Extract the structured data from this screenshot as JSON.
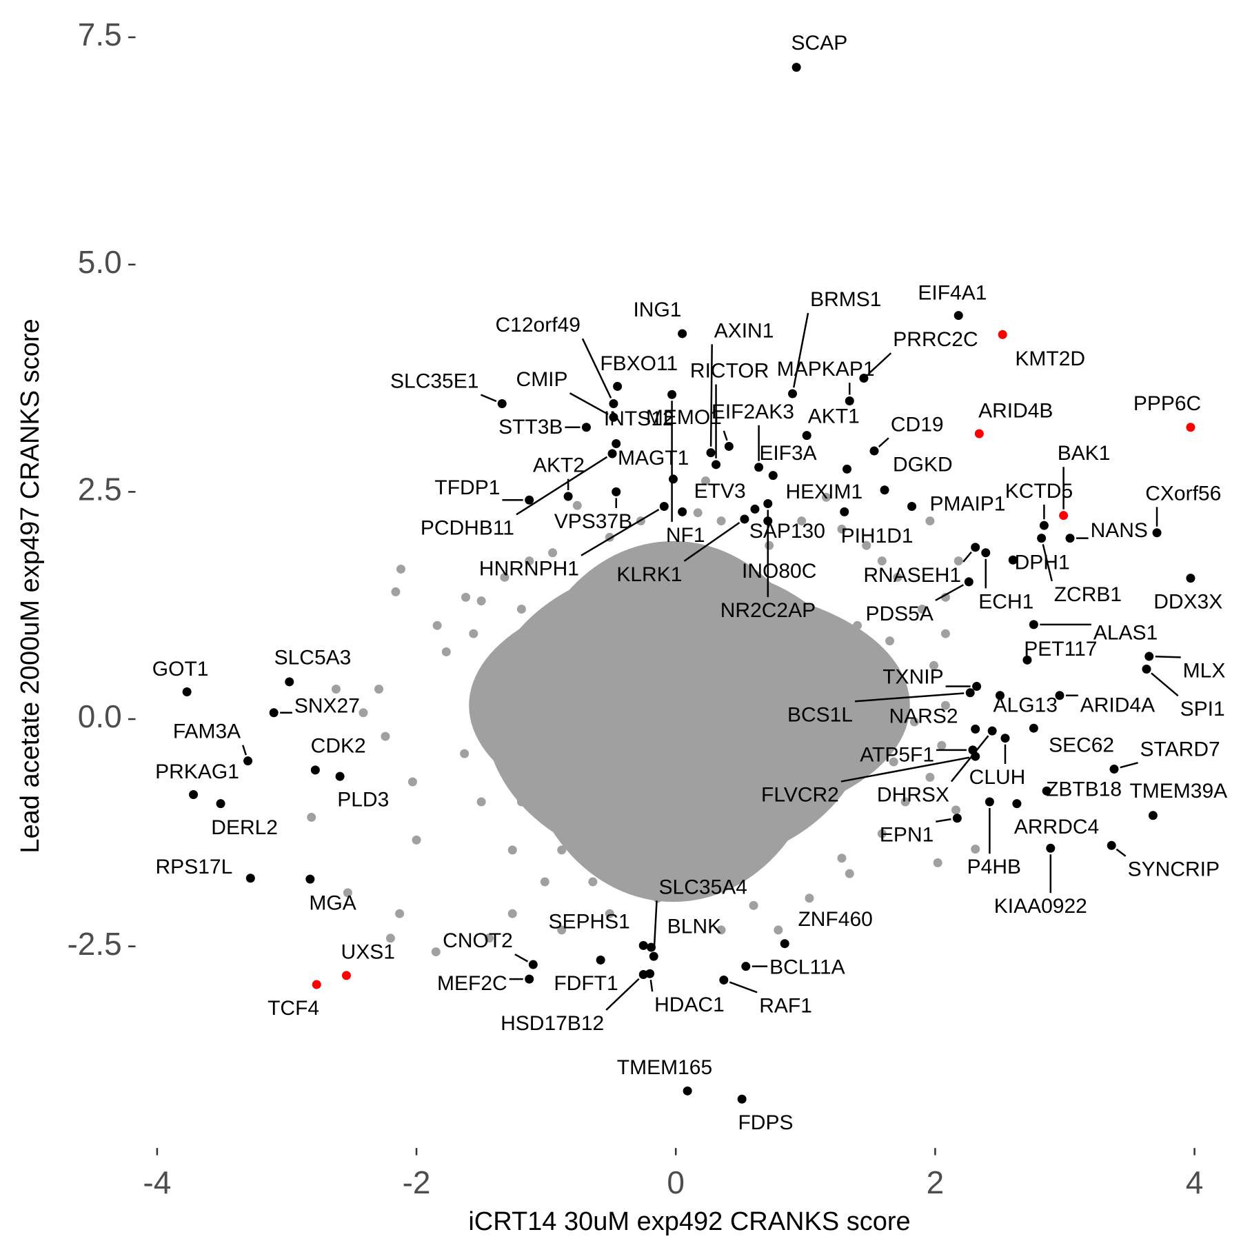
{
  "chart_data": {
    "type": "scatter",
    "x_label": "iCRT14 30uM exp492 CRANKS score",
    "y_label": "Lead acetate 2000uM exp497 CRANKS score",
    "xlim": [
      -4.22,
      4.22
    ],
    "ylim": [
      -4.65,
      7.8
    ],
    "xticks": [
      -4,
      -2,
      0,
      2,
      4
    ],
    "yticks": [
      -2.5,
      {
        "value": 0,
        "label": "0.0"
      },
      2.5,
      {
        "value": 5,
        "label": "5.0"
      },
      7.5
    ],
    "series": [
      {
        "color": "#a0a0a0",
        "x": [
          -2.12,
          -2.16,
          -1.62,
          -1.84,
          -1.77,
          -2.29,
          -2.41,
          -2.24,
          -2.03,
          -2.0,
          -2.13,
          -1.85,
          -2.2,
          -2.53,
          -2.81,
          -2.62,
          -1.44,
          -1.26,
          -0.88,
          -0.64,
          -0.51,
          0.17,
          0.35,
          0.79,
          1.03,
          1.28,
          1.59,
          1.77,
          2.02,
          2.31,
          2.16,
          1.96,
          2.05,
          2.08,
          1.99,
          2.08,
          1.9,
          1.71,
          1.59,
          1.47,
          1.28,
          0.97,
          0.72,
          0.35,
          0.17,
          -0.27,
          -0.51,
          -0.76,
          -0.95,
          -1.13,
          -1.32,
          -1.5,
          -1.56,
          1.96,
          2.18,
          2.08,
          1.16,
          0.23,
          0.6,
          -0.14,
          -1.01,
          -1.26,
          -1.5,
          -1.63,
          1.68,
          1.84,
          1.74,
          -1.19,
          -0.88,
          1.34,
          1.03,
          1.4,
          -1.19,
          -1.38,
          1.65
        ],
        "y": [
          1.65,
          1.4,
          1.34,
          1.03,
          0.74,
          0.33,
          0.07,
          -0.19,
          -0.69,
          -1.33,
          -2.14,
          -2.56,
          -2.41,
          -1.91,
          -1.08,
          0.33,
          -2.41,
          -2.14,
          -2.32,
          -1.79,
          -2.14,
          -1.88,
          -2.32,
          -2.32,
          -1.97,
          -1.53,
          -1.26,
          -0.91,
          -1.58,
          -1.43,
          -1.0,
          -0.64,
          -0.29,
          0.15,
          0.59,
          0.94,
          1.21,
          1.56,
          1.74,
          1.91,
          2.09,
          2.18,
          1.91,
          2.18,
          2.27,
          2.18,
          2.0,
          2.35,
          1.83,
          1.74,
          1.56,
          1.3,
          0.94,
          2.18,
          1.74,
          1.34,
          2.44,
          2.62,
          -2.05,
          -1.97,
          -1.79,
          -1.44,
          -0.91,
          -0.38,
          -0.47,
          -0.03,
          0.33,
          -0.91,
          -1.44,
          -1.7,
          1.21,
          1.03,
          1.21,
          0.41,
          0.86
        ]
      },
      {
        "color": "#000000",
        "labels": [
          "SCAP",
          "EIF4A1",
          "BRMS1",
          "ING1",
          "MAPKAP1",
          "PRRC2C",
          "AKT1",
          "CD19",
          "DGKD",
          "HEXIM1",
          "EIF3A",
          "PMAIP1",
          "PIH1D1",
          "INO80C",
          "NR2C2AP",
          "SAP130",
          "EIF2AK3",
          "MEMO1",
          "RICTOR",
          "AXIN1",
          "FBXO11",
          "C12orf49",
          "CMIP",
          "SLC35E1",
          "STT3B",
          "INTS12",
          "MAGT1",
          "ETV3",
          "AKT2",
          "TFDP1",
          "VPS37B",
          "PCDHB11",
          "HNRNPH1",
          "NF1",
          "KLRK1",
          "KCTD5",
          "CXorf56",
          "NANS",
          "DDX3X",
          "MLX",
          "SPI1",
          "STARD7",
          "TMEM39A",
          "SYNCRIP",
          "KIAA0922",
          "ARRDC4",
          "P4HB",
          "ZBTB18",
          "CLUH",
          "SEC62",
          "ALG13",
          "ARID4A",
          "PET117",
          "ALAS1",
          "ZCRB1",
          "DPH1",
          "ECH1",
          "RNASEH1",
          "PDS5A",
          "TXNIP",
          "BCS1L",
          "NARS2",
          "ATP5F1",
          "FLVCR2",
          "DHRSX",
          "EPN1",
          "GOT1",
          "SLC5A3",
          "SNX27",
          "FAM3A",
          "CDK2",
          "PRKAG1",
          "DERL2",
          "PLD3",
          "RPS17L",
          "MGA",
          "CNOT2",
          "MEF2C",
          "SEPHS1",
          "FDFT1",
          "SLC35A4",
          "BLNK",
          "HSD17B12",
          "HDAC1",
          "ZNF460",
          "BCL11A",
          "RAF1",
          "TMEM165",
          "FDPS"
        ],
        "x": [
          0.93,
          2.18,
          0.9,
          0.05,
          1.34,
          1.45,
          1.01,
          1.53,
          1.61,
          1.32,
          0.75,
          1.82,
          1.3,
          0.71,
          0.71,
          0.61,
          0.64,
          0.41,
          0.31,
          0.27,
          -0.45,
          -0.48,
          -0.48,
          -1.34,
          -0.69,
          -0.46,
          -0.02,
          0.05,
          -0.83,
          -1.13,
          -0.46,
          -0.49,
          -0.09,
          -0.03,
          0.53,
          2.84,
          3.71,
          3.04,
          3.97,
          3.65,
          3.63,
          3.38,
          3.68,
          3.36,
          2.89,
          2.63,
          2.42,
          2.86,
          2.54,
          2.76,
          2.5,
          2.96,
          2.71,
          2.76,
          2.82,
          2.6,
          2.39,
          2.31,
          2.26,
          2.32,
          2.27,
          2.31,
          2.29,
          2.31,
          2.44,
          2.17,
          -3.77,
          -2.98,
          -3.1,
          -3.3,
          -2.78,
          -3.72,
          -3.51,
          -2.59,
          -3.28,
          -2.82,
          -1.1,
          -1.13,
          -0.25,
          -0.58,
          -0.17,
          -0.19,
          -0.25,
          -0.2,
          0.84,
          0.54,
          0.37,
          0.09,
          0.51
        ],
        "y": [
          7.17,
          4.44,
          3.58,
          4.24,
          3.5,
          3.75,
          3.12,
          2.95,
          2.52,
          2.75,
          2.68,
          2.34,
          2.28,
          2.37,
          2.18,
          2.31,
          2.77,
          3.0,
          2.8,
          2.93,
          3.66,
          3.47,
          3.32,
          3.47,
          3.21,
          3.03,
          2.64,
          2.28,
          2.45,
          2.41,
          2.5,
          2.92,
          2.34,
          3.57,
          2.2,
          2.13,
          2.05,
          1.99,
          1.55,
          0.69,
          0.55,
          -0.55,
          -1.06,
          -1.39,
          -1.42,
          -0.93,
          -0.91,
          -0.79,
          -0.21,
          -0.1,
          0.26,
          0.26,
          0.65,
          1.04,
          1.99,
          1.75,
          1.83,
          1.89,
          1.51,
          0.36,
          0.29,
          -0.11,
          -0.34,
          -0.41,
          -0.13,
          -1.09,
          0.3,
          0.41,
          0.07,
          -0.46,
          -0.56,
          -0.83,
          -0.93,
          -0.63,
          -1.75,
          -1.76,
          -2.7,
          -2.86,
          -2.49,
          -2.65,
          -2.61,
          -2.51,
          -2.81,
          -2.8,
          -2.47,
          -2.72,
          -2.87,
          -4.09,
          -4.18
        ]
      },
      {
        "color": "#ff0000",
        "labels": [
          "KMT2D",
          "PPP6C",
          "ARID4B",
          "BAK1",
          "UXS1",
          "TCF4"
        ],
        "x": [
          2.52,
          3.97,
          2.34,
          2.99,
          -2.54,
          -2.77
        ],
        "y": [
          4.23,
          3.21,
          3.14,
          2.24,
          -2.82,
          -2.92
        ]
      }
    ]
  }
}
